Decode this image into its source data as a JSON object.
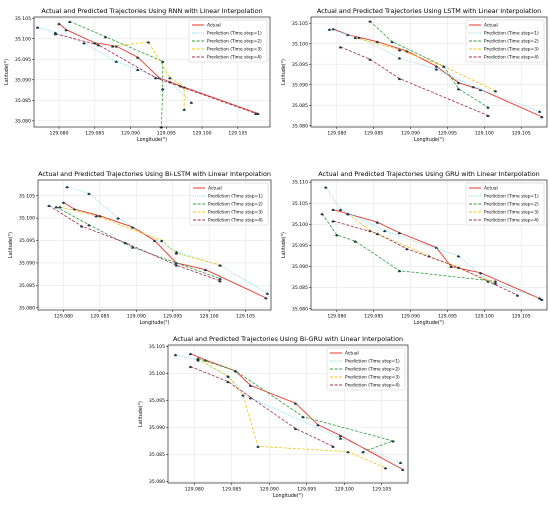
{
  "colors": {
    "Actual": "#e8352a",
    "Prediction (Time step=1)": "#7fd2e6",
    "Prediction (Time step=2)": "#2e9e3a",
    "Prediction (Time step=3)": "#f2c40f",
    "Prediction (Time step=4)": "#9e2a52",
    "marker": "#1f3a4a"
  },
  "chart_data": [
    {
      "type": "line",
      "title": "Actual and Predicted Trajectories Using RNN with Linear Interpolation",
      "xlabel": "Longitude(°)",
      "ylabel": "Latitude(°)",
      "xlim": [
        129.0765,
        129.1095
      ],
      "ylim": [
        35.0785,
        35.1053
      ],
      "xticks": [
        "129.080",
        "129.085",
        "129.090",
        "129.095",
        "129.100",
        "129.105"
      ],
      "yticks": [
        "35.080",
        "35.085",
        "35.090",
        "35.095",
        "35.100",
        "35.105"
      ],
      "grid": true,
      "legend": "top-right",
      "series": [
        {
          "name": "Actual",
          "style": "solid",
          "points": [
            [
              129.08,
              35.1037
            ],
            [
              129.081,
              35.1022
            ],
            [
              129.085,
              35.099
            ],
            [
              129.088,
              35.0982
            ],
            [
              129.091,
              35.0955
            ],
            [
              129.094,
              35.0905
            ],
            [
              129.097,
              35.0885
            ],
            [
              129.1078,
              35.0818
            ]
          ]
        },
        {
          "name": "Prediction (Time step=1)",
          "style": "dotted",
          "points": [
            [
              129.077,
              35.1028
            ],
            [
              129.0795,
              35.1015
            ],
            [
              129.0835,
              35.099
            ],
            [
              129.088,
              35.0945
            ],
            [
              129.091,
              35.0925
            ],
            [
              129.0955,
              35.0895
            ],
            [
              129.0985,
              35.0845
            ]
          ]
        },
        {
          "name": "Prediction (Time step=2)",
          "style": "dashed",
          "points": [
            [
              129.0815,
              35.1042
            ],
            [
              129.0865,
              35.1005
            ],
            [
              129.0945,
              35.0945
            ],
            [
              129.0945,
              35.0878
            ],
            [
              129.0943,
              35.0785
            ]
          ]
        },
        {
          "name": "Prediction (Time step=3)",
          "style": "dashed",
          "points": [
            [
              129.0875,
              35.0982
            ],
            [
              129.0925,
              35.0992
            ],
            [
              129.0955,
              35.0905
            ],
            [
              129.0975,
              35.0882
            ],
            [
              129.0975,
              35.0828
            ]
          ]
        },
        {
          "name": "Prediction (Time step=4)",
          "style": "dashed",
          "points": [
            [
              129.0795,
              35.1012
            ],
            [
              129.0855,
              35.0985
            ],
            [
              129.0935,
              35.0905
            ],
            [
              129.1075,
              35.0818
            ]
          ]
        }
      ]
    },
    {
      "type": "line",
      "title": "Actual and Predicted Trajectories Using LSTM with Linear Interpolation",
      "xlabel": "Longitude(°)",
      "ylabel": "Latitude(°)",
      "xlim": [
        129.0765,
        129.1085
      ],
      "ylim": [
        35.0797,
        35.1065
      ],
      "xticks": [
        "129.080",
        "129.085",
        "129.090",
        "129.095",
        "129.100",
        "129.105"
      ],
      "yticks": [
        "35.080",
        "35.085",
        "35.090",
        "35.095",
        "35.100",
        "35.105"
      ],
      "grid": true,
      "legend": "top-right",
      "series": [
        {
          "name": "Actual",
          "style": "solid",
          "points": [
            [
              129.0795,
              35.1036
            ],
            [
              129.0815,
              35.1022
            ],
            [
              129.0855,
              35.1005
            ],
            [
              129.0895,
              35.0982
            ],
            [
              129.0935,
              35.0945
            ],
            [
              129.0965,
              35.0905
            ],
            [
              129.0995,
              35.0888
            ],
            [
              129.1078,
              35.0822
            ]
          ]
        },
        {
          "name": "Prediction (Time step=1)",
          "style": "dotted",
          "points": [
            [
              129.079,
              35.1035
            ],
            [
              129.083,
              35.1015
            ],
            [
              129.0885,
              35.0965
            ],
            [
              129.0935,
              35.0938
            ],
            [
              129.0985,
              35.0895
            ],
            [
              129.1075,
              35.0835
            ]
          ]
        },
        {
          "name": "Prediction (Time step=2)",
          "style": "dashed",
          "points": [
            [
              129.0845,
              35.1055
            ],
            [
              129.0875,
              35.1005
            ],
            [
              129.0945,
              35.0945
            ],
            [
              129.0965,
              35.089
            ],
            [
              129.1005,
              35.0845
            ]
          ]
        },
        {
          "name": "Prediction (Time step=3)",
          "style": "dashed",
          "points": [
            [
              129.0825,
              35.1015
            ],
            [
              129.0885,
              35.0985
            ],
            [
              129.0945,
              35.0945
            ],
            [
              129.1015,
              35.0885
            ]
          ]
        },
        {
          "name": "Prediction (Time step=4)",
          "style": "dashed",
          "points": [
            [
              129.0805,
              35.0992
            ],
            [
              129.0845,
              35.0962
            ],
            [
              129.0885,
              35.0915
            ],
            [
              129.1005,
              35.0825
            ]
          ]
        }
      ]
    },
    {
      "type": "line",
      "title": "Actual and Predicted Trajectories Using Bi-LSTM with Linear Interpolation",
      "xlabel": "Longitude(°)",
      "ylabel": "Latitude(°)",
      "xlim": [
        129.0765,
        129.1085
      ],
      "ylim": [
        35.0795,
        35.1085
      ],
      "xticks": [
        "129.080",
        "129.085",
        "129.090",
        "129.095",
        "129.100",
        "129.105"
      ],
      "yticks": [
        "35.080",
        "35.085",
        "35.090",
        "35.095",
        "35.100",
        "35.105"
      ],
      "grid": true,
      "legend": "top-right",
      "series": [
        {
          "name": "Actual",
          "style": "solid",
          "points": [
            [
              129.08,
              35.1035
            ],
            [
              129.0815,
              35.102
            ],
            [
              129.085,
              35.1005
            ],
            [
              129.0895,
              35.098
            ],
            [
              129.0925,
              35.095
            ],
            [
              129.0955,
              35.09
            ],
            [
              129.0995,
              35.0885
            ],
            [
              129.1078,
              35.0822
            ]
          ]
        },
        {
          "name": "Prediction (Time step=1)",
          "style": "dotted",
          "points": [
            [
              129.0805,
              35.107
            ],
            [
              129.0835,
              35.1055
            ],
            [
              129.0875,
              35.1
            ],
            [
              129.0955,
              35.0925
            ],
            [
              129.1015,
              35.0895
            ],
            [
              129.108,
              35.0832
            ]
          ]
        },
        {
          "name": "Prediction (Time step=2)",
          "style": "dashed",
          "points": [
            [
              129.079,
              35.1025
            ],
            [
              129.0835,
              35.0985
            ],
            [
              129.0895,
              35.0935
            ],
            [
              129.1015,
              35.0865
            ]
          ]
        },
        {
          "name": "Prediction (Time step=3)",
          "style": "dashed",
          "points": [
            [
              129.0795,
              35.1025
            ],
            [
              129.0845,
              35.1005
            ],
            [
              129.0935,
              35.095
            ],
            [
              129.0955,
              35.0922
            ],
            [
              129.1015,
              35.0895
            ]
          ]
        },
        {
          "name": "Prediction (Time step=4)",
          "style": "dashed",
          "points": [
            [
              129.078,
              35.1028
            ],
            [
              129.0825,
              35.0982
            ],
            [
              129.0885,
              35.0945
            ],
            [
              129.0955,
              35.0895
            ],
            [
              129.1015,
              35.086
            ]
          ]
        }
      ]
    },
    {
      "type": "line",
      "title": "Actual and Predicted Trajectories Using GRU with Linear Interpolation",
      "xlabel": "Longitude(°)",
      "ylabel": "Latitude(°)",
      "xlim": [
        129.0765,
        129.1085
      ],
      "ylim": [
        35.0797,
        35.1105
      ],
      "xticks": [
        "129.080",
        "129.085",
        "129.090",
        "129.095",
        "129.100",
        "129.105"
      ],
      "yticks": [
        "35.080",
        "35.085",
        "35.090",
        "35.095",
        "35.100",
        "35.105",
        "35.110"
      ],
      "grid": true,
      "legend": "top-right",
      "series": [
        {
          "name": "Actual",
          "style": "solid",
          "points": [
            [
              129.0795,
              35.1035
            ],
            [
              129.0815,
              35.1025
            ],
            [
              129.0855,
              35.1005
            ],
            [
              129.0885,
              35.098
            ],
            [
              129.0935,
              35.0945
            ],
            [
              129.0955,
              35.09
            ],
            [
              129.0995,
              35.0885
            ],
            [
              129.1078,
              35.0822
            ]
          ]
        },
        {
          "name": "Prediction (Time step=1)",
          "style": "dotted",
          "points": [
            [
              129.0785,
              35.1088
            ],
            [
              129.0805,
              35.1035
            ],
            [
              129.0865,
              35.0985
            ],
            [
              129.0965,
              35.0925
            ],
            [
              129.1005,
              35.0865
            ],
            [
              129.1075,
              35.0825
            ]
          ]
        },
        {
          "name": "Prediction (Time step=2)",
          "style": "dashed",
          "points": [
            [
              129.078,
              35.1025
            ],
            [
              129.08,
              35.0975
            ],
            [
              129.0825,
              35.096
            ],
            [
              129.0885,
              35.089
            ],
            [
              129.1015,
              35.0865
            ]
          ]
        },
        {
          "name": "Prediction (Time step=3)",
          "style": "dashed",
          "points": [
            [
              129.0815,
              35.1025
            ],
            [
              129.0845,
              35.0985
            ],
            [
              129.0925,
              35.0925
            ],
            [
              129.1015,
              35.086
            ]
          ]
        },
        {
          "name": "Prediction (Time step=4)",
          "style": "dashed",
          "points": [
            [
              129.0795,
              35.1008
            ],
            [
              129.0855,
              35.0978
            ],
            [
              129.0895,
              35.0942
            ],
            [
              129.0965,
              35.0898
            ],
            [
              129.1045,
              35.0832
            ]
          ]
        }
      ]
    },
    {
      "type": "line",
      "title": "Actual and Predicted Trajectories Using Bi-GRU with Linear Interpolation",
      "xlabel": "Longitude(°)",
      "ylabel": "Latitude(°)",
      "xlim": [
        129.0765,
        129.1085
      ],
      "ylim": [
        35.0797,
        35.1053
      ],
      "xticks": [
        "129.080",
        "129.085",
        "129.090",
        "129.095",
        "129.100",
        "129.105"
      ],
      "yticks": [
        "35.080",
        "35.085",
        "35.090",
        "35.095",
        "35.100",
        "35.105"
      ],
      "grid": true,
      "legend": "top-right",
      "series": [
        {
          "name": "Actual",
          "style": "solid",
          "points": [
            [
              129.0795,
              35.1037
            ],
            [
              129.0815,
              35.1025
            ],
            [
              129.0855,
              35.1005
            ],
            [
              129.0875,
              35.0978
            ],
            [
              129.0935,
              35.0945
            ],
            [
              129.0965,
              35.0905
            ],
            [
              129.0995,
              35.0885
            ],
            [
              129.1078,
              35.0822
            ]
          ]
        },
        {
          "name": "Prediction (Time step=1)",
          "style": "dotted",
          "points": [
            [
              129.0775,
              35.1035
            ],
            [
              129.0805,
              35.1025
            ],
            [
              129.0845,
              35.0995
            ],
            [
              129.0875,
              35.0955
            ],
            [
              129.0995,
              35.088
            ],
            [
              129.1075,
              35.0835
            ]
          ]
        },
        {
          "name": "Prediction (Time step=2)",
          "style": "dashed",
          "points": [
            [
              129.0805,
              35.1028
            ],
            [
              129.0855,
              35.1005
            ],
            [
              129.0945,
              35.092
            ],
            [
              129.1065,
              35.0875
            ],
            [
              129.1025,
              35.0855
            ]
          ]
        },
        {
          "name": "Prediction (Time step=3)",
          "style": "dashed",
          "points": [
            [
              129.0805,
              35.1028
            ],
            [
              129.0845,
              35.0995
            ],
            [
              129.0865,
              35.096
            ],
            [
              129.0885,
              35.0865
            ],
            [
              129.1005,
              35.0855
            ],
            [
              129.1055,
              35.0825
            ]
          ]
        },
        {
          "name": "Prediction (Time step=4)",
          "style": "dashed",
          "points": [
            [
              129.0795,
              35.1013
            ],
            [
              129.0845,
              35.0985
            ],
            [
              129.0935,
              35.0898
            ],
            [
              129.0985,
              35.0865
            ]
          ]
        }
      ]
    }
  ]
}
